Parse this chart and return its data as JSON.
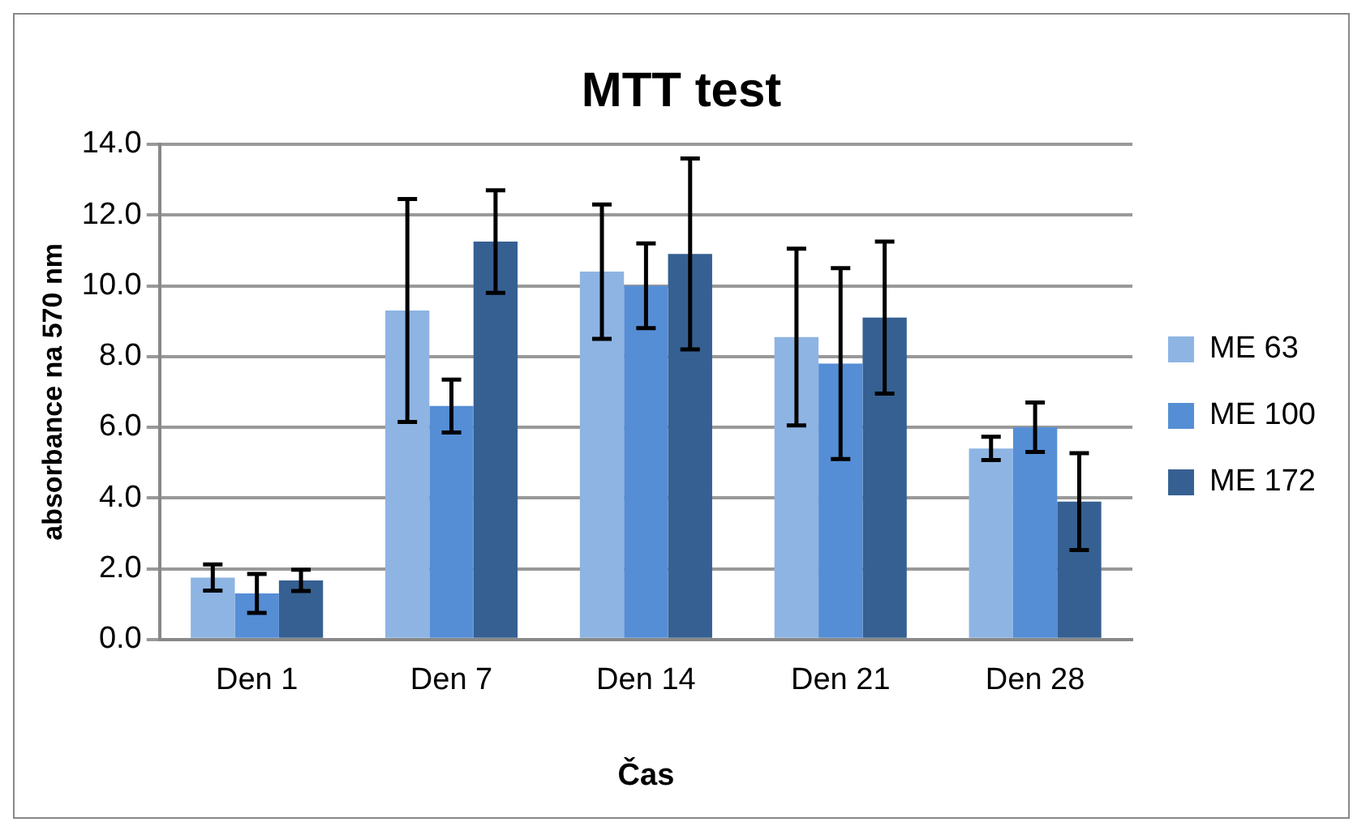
{
  "chart_data": {
    "type": "bar",
    "title": "MTT test",
    "xlabel": "Čas",
    "ylabel": "absorbance na 570 nm",
    "categories": [
      "Den 1",
      "Den 7",
      "Den 14",
      "Den 21",
      "Den 28"
    ],
    "series": [
      {
        "name": "ME 63",
        "color": "#8eb4e3",
        "values": [
          1.75,
          9.3,
          10.4,
          8.55,
          5.4
        ],
        "errors": [
          0.37,
          3.15,
          1.9,
          2.5,
          0.33
        ]
      },
      {
        "name": "ME 100",
        "color": "#558ed5",
        "values": [
          1.3,
          6.6,
          10.0,
          7.8,
          6.0
        ],
        "errors": [
          0.55,
          0.75,
          1.2,
          2.7,
          0.7
        ]
      },
      {
        "name": "ME 172",
        "color": "#366092",
        "values": [
          1.67,
          11.25,
          10.9,
          9.1,
          3.9
        ],
        "errors": [
          0.3,
          1.45,
          2.7,
          2.15,
          1.37
        ]
      }
    ],
    "ylim": [
      0,
      14
    ],
    "yticks": [
      {
        "value": 0,
        "label": "0.0"
      },
      {
        "value": 2,
        "label": "2.0"
      },
      {
        "value": 4,
        "label": "4.0"
      },
      {
        "value": 6,
        "label": "6.0"
      },
      {
        "value": 8,
        "label": "8.0"
      },
      {
        "value": 10,
        "label": "10.0"
      },
      {
        "value": 12,
        "label": "12.0"
      },
      {
        "value": 14,
        "label": "14.0"
      }
    ],
    "grid": "y",
    "legend": "right"
  }
}
